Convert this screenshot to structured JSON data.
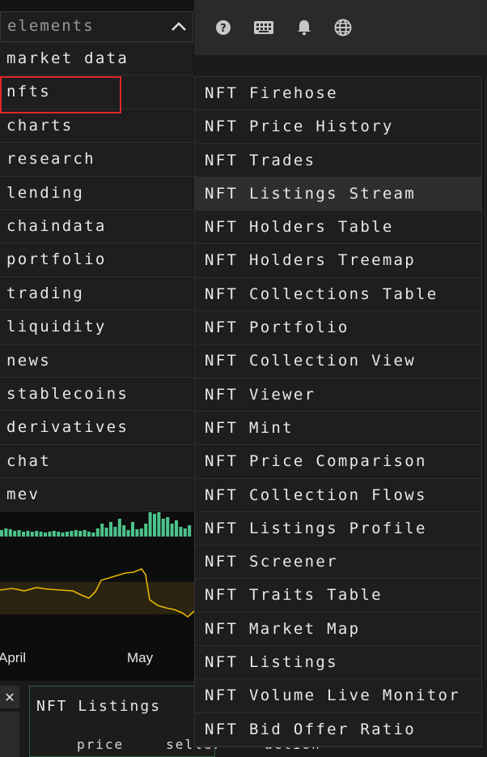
{
  "topbar": {
    "icons": [
      "help-icon",
      "keyboard-icon",
      "bell-icon",
      "globe-icon"
    ]
  },
  "dropdown": {
    "label": "elements",
    "categories": [
      "market data",
      "nfts",
      "charts",
      "research",
      "lending",
      "chaindata",
      "portfolio",
      "trading",
      "liquidity",
      "news",
      "stablecoins",
      "derivatives",
      "chat",
      "mev"
    ],
    "active_category": "nfts",
    "submenu": [
      "NFT Firehose",
      "NFT Price History",
      "NFT Trades",
      "NFT Listings Stream",
      "NFT Holders Table",
      "NFT Holders Treemap",
      "NFT Collections Table",
      "NFT Portfolio",
      "NFT Collection View",
      "NFT Viewer",
      "NFT Mint",
      "NFT Price Comparison",
      "NFT Collection Flows",
      "NFT Listings Profile",
      "NFT Screener",
      "NFT Traits Table",
      "NFT Market Map",
      "NFT Listings",
      "NFT Volume Live Monitor",
      "NFT Bid Offer Ratio"
    ],
    "hovered_item": "NFT Listings Stream"
  },
  "chart": {
    "x_labels": [
      "April",
      "May"
    ],
    "line_color": "#e6b800",
    "bar_color": "#4cc38a"
  },
  "bottom_widget": {
    "close_label": "✕",
    "title": "NFT Listings",
    "columns": [
      "price",
      "seller",
      "action"
    ]
  }
}
